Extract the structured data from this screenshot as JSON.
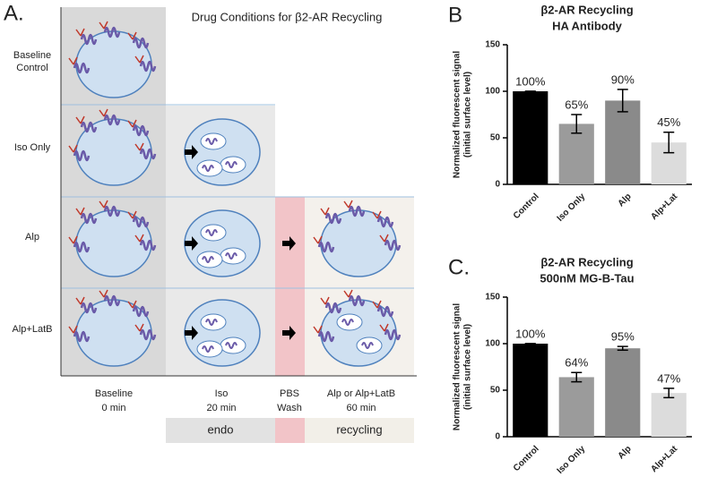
{
  "panel_a": {
    "label": "A.",
    "title": "Drug Conditions for  β2-AR Recycling",
    "rows": [
      [
        "Baseline",
        "Control"
      ],
      [
        "Iso Only"
      ],
      [
        "Alp"
      ],
      [
        "Alp+LatB"
      ]
    ],
    "columns": [
      [
        "Baseline",
        "0 min"
      ],
      [
        "Iso",
        "20 min"
      ],
      [
        "PBS",
        "Wash"
      ],
      [
        "Alp or Alp+LatB",
        "60 min"
      ]
    ],
    "phases": [
      "endo",
      "recycling"
    ]
  },
  "chart_data": [
    {
      "type": "bar",
      "label": "B",
      "title": "β2-AR Recycling",
      "subtitle": "HA Antibody",
      "y_label": [
        "Normalized fluorescent signal",
        "(initial surface level)"
      ],
      "categories": [
        "Control",
        "Iso Only",
        "Alp",
        "Alp+Lat"
      ],
      "values": [
        100,
        65,
        90,
        45
      ],
      "errors": [
        0,
        10,
        12,
        11
      ],
      "value_labels": [
        "100%",
        "65%",
        "90%",
        "45%"
      ],
      "colors": [
        "#000000",
        "#9b9b9b",
        "#8a8a8a",
        "#dcdcdc"
      ],
      "ylim": [
        0,
        150
      ],
      "yticks": [
        0,
        50,
        100,
        150
      ]
    },
    {
      "type": "bar",
      "label": "C.",
      "title": "β2-AR Recycling",
      "subtitle": "500nM MG-B-Tau",
      "y_label": [
        "Normalized fluorescent signal",
        "(initial surface level)"
      ],
      "categories": [
        "Control",
        "Iso Only",
        "Alp",
        "Alp+Lat"
      ],
      "values": [
        100,
        64,
        95,
        47
      ],
      "errors": [
        0,
        5,
        2,
        5
      ],
      "value_labels": [
        "100%",
        "64%",
        "95%",
        "47%"
      ],
      "colors": [
        "#000000",
        "#9b9b9b",
        "#8a8a8a",
        "#dcdcdc"
      ],
      "ylim": [
        0,
        150
      ],
      "yticks": [
        0,
        50,
        100,
        150
      ]
    }
  ]
}
